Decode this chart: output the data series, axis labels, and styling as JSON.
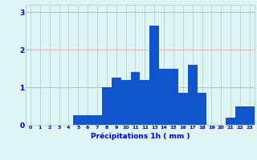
{
  "hours": [
    0,
    1,
    2,
    3,
    4,
    5,
    6,
    7,
    8,
    9,
    10,
    11,
    12,
    13,
    14,
    15,
    16,
    17,
    18,
    19,
    20,
    21,
    22,
    23
  ],
  "values": [
    0.0,
    0.0,
    0.0,
    0.0,
    0.0,
    0.25,
    0.25,
    0.25,
    1.0,
    1.25,
    1.2,
    1.4,
    1.2,
    2.65,
    1.5,
    1.5,
    0.85,
    1.6,
    0.85,
    0.0,
    0.0,
    0.2,
    0.5,
    0.5
  ],
  "bar_color": "#1155cc",
  "background_color": "#dff4f4",
  "grid_color": "#aacccc",
  "text_color": "#0000bb",
  "xlabel": "Précipitations 1h ( mm )",
  "ylim": [
    0,
    3.2
  ],
  "yticks": [
    0,
    1,
    2,
    3
  ],
  "figsize": [
    3.2,
    2.0
  ],
  "dpi": 100
}
